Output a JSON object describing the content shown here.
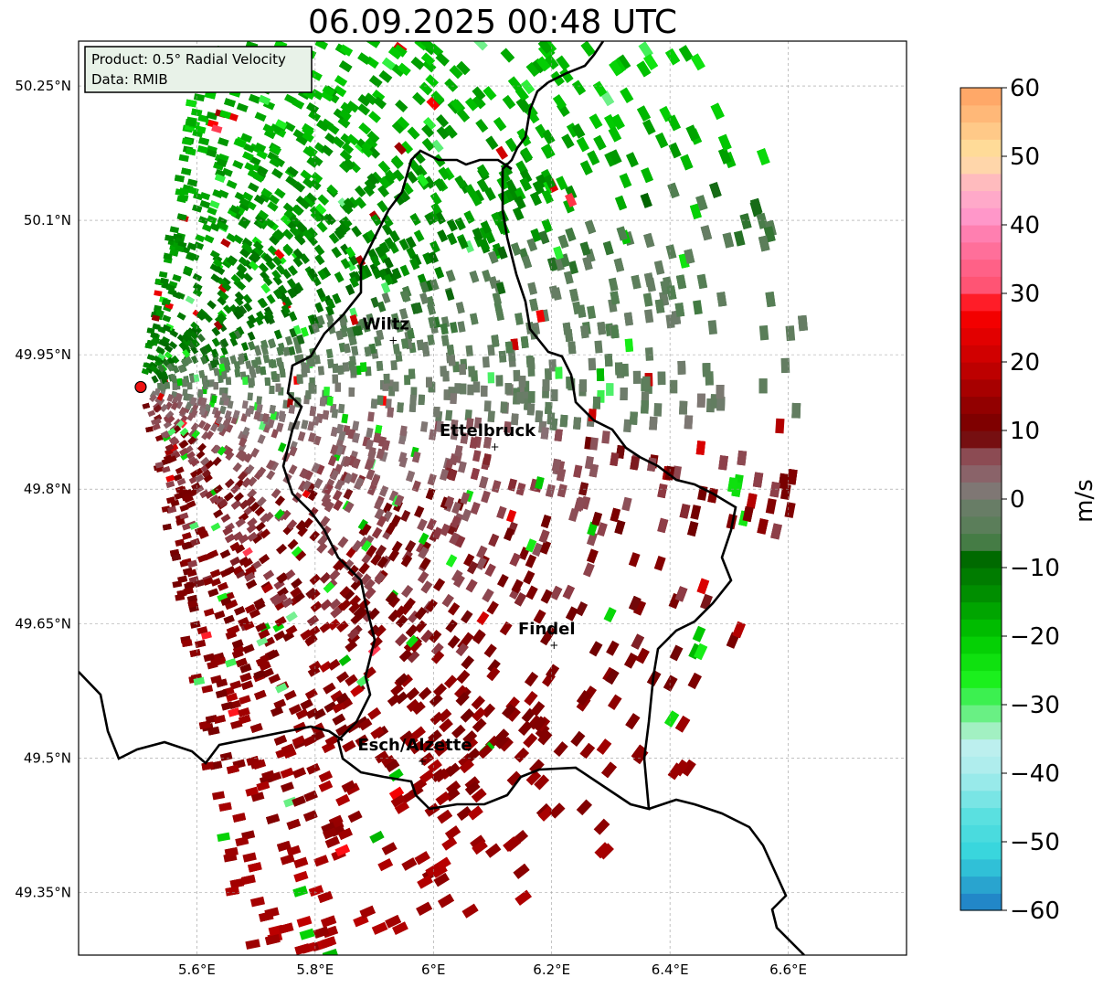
{
  "title": "06.09.2025 00:48 UTC",
  "info": {
    "product": "Product: 0.5° Radial Velocity",
    "source": "Data: RMIB"
  },
  "map": {
    "lon_range": [
      5.4,
      6.8
    ],
    "lat_range": [
      49.28,
      50.3
    ],
    "lon_ticks": [
      {
        "value": 5.6,
        "label": "5.6°E"
      },
      {
        "value": 5.8,
        "label": "5.8°E"
      },
      {
        "value": 6.0,
        "label": "6°E"
      },
      {
        "value": 6.2,
        "label": "6.2°E"
      },
      {
        "value": 6.4,
        "label": "6.4°E"
      },
      {
        "value": 6.6,
        "label": "6.6°E"
      }
    ],
    "lat_ticks": [
      {
        "value": 50.25,
        "label": "50.25°N"
      },
      {
        "value": 50.1,
        "label": "50.1°N"
      },
      {
        "value": 49.95,
        "label": "49.95°N"
      },
      {
        "value": 49.8,
        "label": "49.8°N"
      },
      {
        "value": 49.65,
        "label": "49.65°N"
      },
      {
        "value": 49.5,
        "label": "49.5°N"
      },
      {
        "value": 49.35,
        "label": "49.35°N"
      }
    ],
    "radar_site": {
      "lon": 5.505,
      "lat": 49.914
    },
    "cities": [
      {
        "name": "Wiltz",
        "lon": 5.932,
        "lat": 49.966
      },
      {
        "name": "Ettelbruck",
        "lon": 6.104,
        "lat": 49.847
      },
      {
        "name": "Findel",
        "lon": 6.204,
        "lat": 49.626
      },
      {
        "name": "Esch/Alzette",
        "lon": 5.981,
        "lat": 49.496
      }
    ],
    "border_color": "#000000"
  },
  "colorbar": {
    "label": "m/s",
    "min": -60,
    "max": 60,
    "ticks": [
      {
        "value": 60,
        "label": "60"
      },
      {
        "value": 50,
        "label": "50"
      },
      {
        "value": 40,
        "label": "40"
      },
      {
        "value": 30,
        "label": "30"
      },
      {
        "value": 20,
        "label": "20"
      },
      {
        "value": 10,
        "label": "10"
      },
      {
        "value": 0,
        "label": "0"
      },
      {
        "value": -10,
        "label": "−10"
      },
      {
        "value": -20,
        "label": "−20"
      },
      {
        "value": -30,
        "label": "−30"
      },
      {
        "value": -40,
        "label": "−40"
      },
      {
        "value": -50,
        "label": "−50"
      },
      {
        "value": -60,
        "label": "−60"
      }
    ],
    "stops": [
      {
        "value": -60,
        "color": "#1f78c4"
      },
      {
        "value": -56,
        "color": "#2aa7d0"
      },
      {
        "value": -52,
        "color": "#34d4dc"
      },
      {
        "value": -46,
        "color": "#5ce0e0"
      },
      {
        "value": -40,
        "color": "#a8ecec"
      },
      {
        "value": -35,
        "color": "#c2f0ee"
      },
      {
        "value": -33,
        "color": "#8ff0a8"
      },
      {
        "value": -30,
        "color": "#4df06a"
      },
      {
        "value": -26,
        "color": "#18f018"
      },
      {
        "value": -20,
        "color": "#00c800"
      },
      {
        "value": -14,
        "color": "#009000"
      },
      {
        "value": -8,
        "color": "#006400"
      },
      {
        "value": -6,
        "color": "#4f7f4f"
      },
      {
        "value": 0,
        "color": "#6f7c6c"
      },
      {
        "value": 2,
        "color": "#887478"
      },
      {
        "value": 8,
        "color": "#8e3a44"
      },
      {
        "value": 9,
        "color": "#6e0000"
      },
      {
        "value": 15,
        "color": "#9c0000"
      },
      {
        "value": 20,
        "color": "#c80000"
      },
      {
        "value": 28,
        "color": "#ff0000"
      },
      {
        "value": 30,
        "color": "#ff4d6a"
      },
      {
        "value": 38,
        "color": "#ff78a8"
      },
      {
        "value": 42,
        "color": "#ff9ed0"
      },
      {
        "value": 46,
        "color": "#ffb8c0"
      },
      {
        "value": 50,
        "color": "#ffe4a0"
      },
      {
        "value": 55,
        "color": "#ffc080"
      },
      {
        "value": 60,
        "color": "#ffa060"
      }
    ]
  }
}
